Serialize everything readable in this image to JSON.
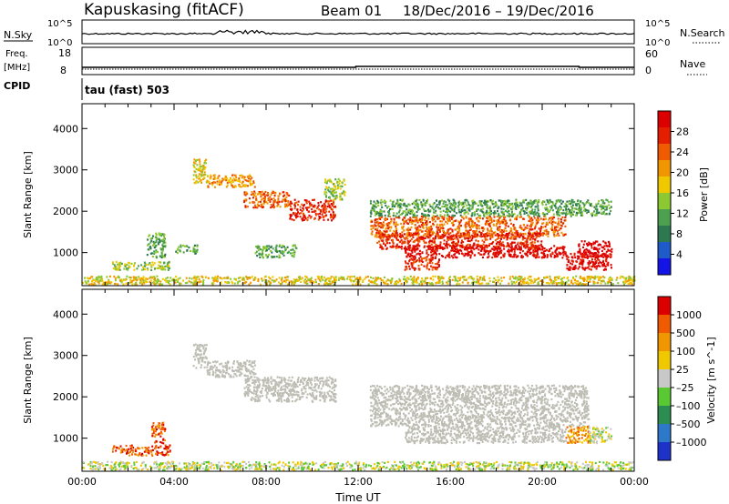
{
  "header": {
    "station": "Kapuskasing (fitACF)",
    "beam": "Beam 01",
    "date_range": "18/Dec/2016 – 19/Dec/2016"
  },
  "summary_panels": {
    "nsky": {
      "label": "N.Sky",
      "left_ticks": [
        "10^5",
        "10^0"
      ],
      "right_label": "N.Search",
      "right_ticks": [
        "10^5",
        "10^0"
      ]
    },
    "freq": {
      "label_line1": "Freq.",
      "label_line2": "[MHz]",
      "left_ticks": [
        "18",
        "8"
      ],
      "right_label": "Nave",
      "right_ticks": [
        "60",
        "0"
      ]
    },
    "cpid": {
      "label": "CPID",
      "text": "tau (fast) 503"
    }
  },
  "chart_data": [
    {
      "type": "heatmap",
      "name": "power",
      "ylabel": "Slant Range [km]",
      "yticks": [
        "1000",
        "2000",
        "3000",
        "4000"
      ],
      "ylim": [
        200,
        4600
      ],
      "xlim": [
        0,
        24
      ],
      "colorbar": {
        "label": "Power [dB]",
        "ticks": [
          "4",
          "8",
          "12",
          "16",
          "20",
          "24",
          "28"
        ],
        "colors": [
          "#1414e6",
          "#1e5ac8",
          "#2d7850",
          "#4ca050",
          "#8cc832",
          "#f0c800",
          "#f09600",
          "#f05a00",
          "#e61e00",
          "#dc0000"
        ],
        "range": [
          0,
          32
        ]
      },
      "regions": [
        {
          "x": [
            4.8,
            5.4
          ],
          "y": [
            2700,
            3300
          ],
          "level": 5
        },
        {
          "x": [
            5.4,
            7.5
          ],
          "y": [
            2600,
            2900
          ],
          "level": 6
        },
        {
          "x": [
            7.0,
            9.0
          ],
          "y": [
            2100,
            2500
          ],
          "level": 7
        },
        {
          "x": [
            9.0,
            11.0
          ],
          "y": [
            1800,
            2300
          ],
          "level": 8
        },
        {
          "x": [
            10.5,
            11.4
          ],
          "y": [
            2300,
            2800
          ],
          "level": 4
        },
        {
          "x": [
            1.3,
            3.8
          ],
          "y": [
            600,
            800
          ],
          "level": 4
        },
        {
          "x": [
            2.8,
            3.6
          ],
          "y": [
            900,
            1500
          ],
          "level": 3
        },
        {
          "x": [
            4.0,
            5.0
          ],
          "y": [
            1000,
            1200
          ],
          "level": 3
        },
        {
          "x": [
            7.5,
            9.3
          ],
          "y": [
            900,
            1200
          ],
          "level": 3
        },
        {
          "x": [
            12.5,
            21.0
          ],
          "y": [
            1400,
            1900
          ],
          "level": 7
        },
        {
          "x": [
            12.8,
            20.0
          ],
          "y": [
            1100,
            1500
          ],
          "level": 8
        },
        {
          "x": [
            14.0,
            21.0
          ],
          "y": [
            900,
            1200
          ],
          "level": 9
        },
        {
          "x": [
            14.0,
            15.5
          ],
          "y": [
            600,
            900
          ],
          "level": 8
        },
        {
          "x": [
            21.5,
            23.0
          ],
          "y": [
            900,
            1300
          ],
          "level": 10
        },
        {
          "x": [
            21.0,
            23.0
          ],
          "y": [
            600,
            1000
          ],
          "level": 9
        },
        {
          "x": [
            12.5,
            23.0
          ],
          "y": [
            1900,
            2300
          ],
          "level": 3
        },
        {
          "x": [
            0.0,
            24.0
          ],
          "y": [
            250,
            450
          ],
          "level": 5
        }
      ]
    },
    {
      "type": "heatmap",
      "name": "velocity",
      "ylabel": "Slant Range [km]",
      "yticks": [
        "1000",
        "2000",
        "3000",
        "4000"
      ],
      "ylim": [
        200,
        4600
      ],
      "xlim": [
        0,
        24
      ],
      "xticks": [
        "00:00",
        "04:00",
        "08:00",
        "12:00",
        "16:00",
        "20:00",
        "00:00"
      ],
      "xlabel": "Time UT",
      "colorbar": {
        "label": "Velocity [m s^-1]",
        "ticks": [
          "1000",
          "500",
          "100",
          "25",
          "–25",
          "–100",
          "–500",
          "–1000"
        ],
        "colors": [
          "#1e32c8",
          "#2d78c8",
          "#2d8c50",
          "#5ac832",
          "#c8c8c8",
          "#f0c800",
          "#f09600",
          "#f05a00",
          "#dc0000"
        ]
      },
      "regions": [
        {
          "x": [
            4.8,
            5.4
          ],
          "y": [
            2700,
            3300
          ],
          "class": "ground"
        },
        {
          "x": [
            5.4,
            7.5
          ],
          "y": [
            2500,
            2900
          ],
          "class": "ground"
        },
        {
          "x": [
            7.0,
            11.0
          ],
          "y": [
            1900,
            2500
          ],
          "class": "ground"
        },
        {
          "x": [
            12.5,
            22.0
          ],
          "y": [
            1300,
            2300
          ],
          "class": "ground"
        },
        {
          "x": [
            14.0,
            21.0
          ],
          "y": [
            900,
            1300
          ],
          "class": "ground"
        },
        {
          "x": [
            1.3,
            3.8
          ],
          "y": [
            600,
            850
          ],
          "level": 7
        },
        {
          "x": [
            3.0,
            3.6
          ],
          "y": [
            900,
            1400
          ],
          "level": 7
        },
        {
          "x": [
            21.0,
            22.0
          ],
          "y": [
            900,
            1300
          ],
          "level": 6
        },
        {
          "x": [
            22.0,
            23.0
          ],
          "y": [
            900,
            1300
          ],
          "level": 4
        },
        {
          "x": [
            0.0,
            24.0
          ],
          "y": [
            250,
            450
          ],
          "level": 4
        }
      ]
    }
  ],
  "colors": {
    "ground_scatter": "#bdbdb4",
    "axis": "#000000"
  }
}
